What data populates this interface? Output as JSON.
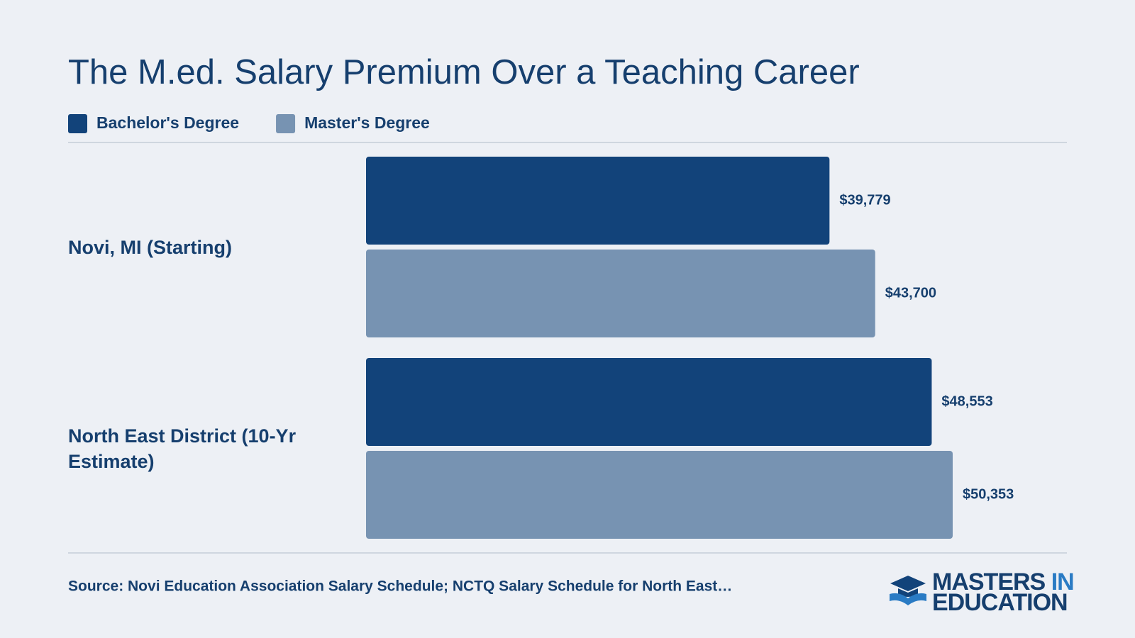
{
  "chart_data": {
    "type": "bar",
    "orientation": "horizontal",
    "title": "The M.ed. Salary Premium Over a Teaching Career",
    "categories": [
      "Novi, MI (Starting)",
      "North East District (10-Yr Estimate)"
    ],
    "series": [
      {
        "name": "Bachelor's Degree",
        "color": "#12437a",
        "values": [
          39779,
          48553
        ],
        "value_labels": [
          "$39,779",
          "$48,553"
        ]
      },
      {
        "name": "Master's Degree",
        "color": "#7793b2",
        "values": [
          43700,
          50353
        ],
        "value_labels": [
          "$43,700",
          "$50,353"
        ]
      }
    ],
    "source": "Source: Novi Education Association Salary Schedule; NCTQ Salary Schedule for North East…"
  },
  "logo": {
    "word1": "MASTERS",
    "word2": "IN",
    "word3": "EDUCATION"
  }
}
